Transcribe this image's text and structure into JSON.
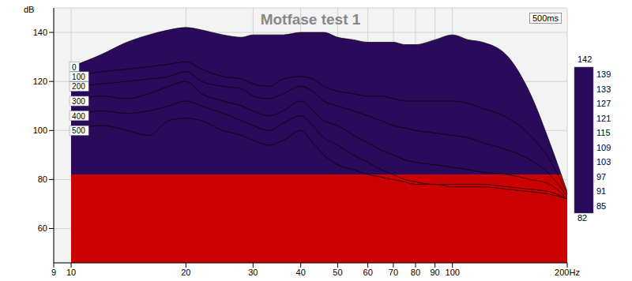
{
  "chart_data": {
    "type": "waterfall",
    "title": "Motfase test 1",
    "y_label": "dB",
    "annotation": "500ms",
    "x": [
      9,
      10,
      12,
      14,
      16,
      18,
      20,
      22,
      25,
      28,
      30,
      33,
      36,
      40,
      43,
      46,
      50,
      55,
      60,
      65,
      70,
      75,
      80,
      90,
      100,
      110,
      120,
      140,
      160,
      180,
      200
    ],
    "series": [
      {
        "name": "0",
        "values": [
          null,
          126,
          131,
          136,
          139,
          141,
          142,
          141,
          139,
          138,
          139,
          139,
          139,
          140,
          140,
          140,
          138,
          137,
          136,
          136,
          136,
          135,
          135,
          137,
          139,
          137,
          136,
          130,
          115,
          95,
          75
        ]
      },
      {
        "name": "100",
        "values": [
          null,
          122,
          124,
          125,
          126,
          127,
          128,
          125,
          122,
          121,
          119,
          118,
          121,
          122,
          121,
          118,
          116,
          115,
          114,
          114,
          113,
          112,
          112,
          112,
          112,
          111,
          109,
          105,
          98,
          88,
          74
        ]
      },
      {
        "name": "200",
        "values": [
          null,
          118,
          119,
          120,
          121,
          122,
          124,
          120,
          118,
          117,
          114,
          113,
          115,
          118,
          116,
          112,
          110,
          108,
          106,
          104,
          102,
          101,
          100,
          99,
          98,
          97,
          95,
          92,
          88,
          82,
          73
        ]
      },
      {
        "name": "300",
        "values": [
          null,
          112,
          114,
          113,
          115,
          118,
          120,
          115,
          112,
          110,
          108,
          106,
          108,
          112,
          108,
          104,
          102,
          98,
          95,
          92,
          90,
          88,
          87,
          86,
          85,
          84,
          83,
          82,
          80,
          78,
          72
        ]
      },
      {
        "name": "400",
        "values": [
          null,
          106,
          108,
          107,
          108,
          110,
          112,
          110,
          107,
          104,
          102,
          100,
          103,
          106,
          102,
          97,
          94,
          90,
          87,
          84,
          82,
          80,
          79,
          78,
          78,
          78,
          78,
          77,
          76,
          75,
          72
        ]
      },
      {
        "name": "500",
        "values": [
          null,
          100,
          102,
          100,
          98,
          104,
          105,
          104,
          100,
          98,
          96,
          94,
          96,
          100,
          95,
          90,
          86,
          84,
          82,
          81,
          80,
          79,
          78,
          78,
          77,
          77,
          77,
          76,
          75,
          74,
          72
        ]
      }
    ],
    "xlim": [
      9,
      200
    ],
    "xticks": [
      9,
      10,
      20,
      30,
      40,
      50,
      60,
      70,
      80,
      90,
      100,
      {
        "value": 200,
        "label": "200Hz"
      }
    ],
    "ylim": [
      46,
      150
    ],
    "yticks": [
      60,
      80,
      100,
      120,
      140
    ],
    "log": "x",
    "grid": true,
    "colorbar": {
      "range": [
        82,
        142
      ],
      "ticks": [
        82,
        85,
        91,
        97,
        103,
        109,
        115,
        121,
        127,
        133,
        139,
        142
      ],
      "colors": [
        "#2a0a5a",
        "#2d1a72",
        "#1a3cc4",
        "#1480b4",
        "#10a598",
        "#18b060",
        "#30bc30",
        "#70c824",
        "#d8dc1c",
        "#f0a014",
        "#e83410",
        "#cc0000"
      ]
    }
  }
}
